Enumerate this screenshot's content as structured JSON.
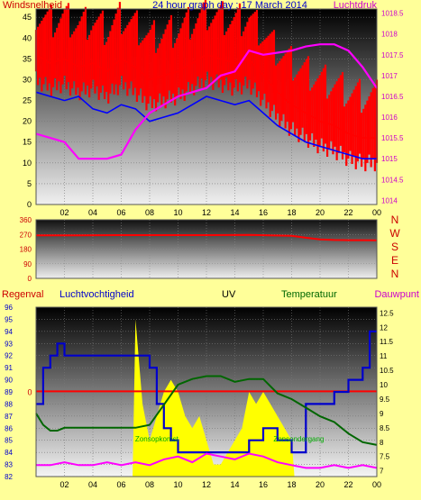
{
  "chart_data": [
    {
      "type": "line",
      "title": "24 hour graph day : 17 March 2014",
      "left_axis_title": "Windsnelheid",
      "right_axis_title": "Luchtdruk",
      "x_ticks": [
        "02",
        "04",
        "06",
        "08",
        "10",
        "12",
        "14",
        "16",
        "18",
        "20",
        "22",
        "00"
      ],
      "left_ticks": [
        0,
        5,
        10,
        15,
        20,
        25,
        30,
        35,
        40,
        45
      ],
      "right_ticks": [
        "1014",
        "1014.5",
        "1015",
        "1015.5",
        "1016",
        "1016.5",
        "1017",
        "1017.5",
        "1018",
        "1018.5"
      ],
      "left_ylim": [
        0,
        47
      ],
      "right_ylim": [
        1013.9,
        1018.6
      ],
      "series": [
        {
          "color": "#ff0000",
          "axis": "left",
          "x": [
            0,
            1,
            2,
            3,
            4,
            5,
            6,
            7,
            8,
            9,
            10,
            11,
            12,
            13,
            14,
            15,
            16,
            17,
            18,
            19,
            20,
            21,
            22,
            23,
            24
          ],
          "y": [
            36,
            34,
            35,
            33,
            34,
            32,
            35,
            33,
            30,
            31,
            32,
            34,
            36,
            35,
            34,
            35,
            31,
            27,
            24,
            22,
            20,
            19,
            17,
            16,
            16
          ]
        },
        {
          "color": "#0000ff",
          "axis": "left",
          "x": [
            0,
            1,
            2,
            3,
            4,
            5,
            6,
            7,
            8,
            9,
            10,
            11,
            12,
            13,
            14,
            15,
            16,
            17,
            18,
            19,
            20,
            21,
            22,
            23,
            24
          ],
          "y": [
            27,
            26,
            25,
            26,
            23,
            22,
            24,
            23,
            20,
            21,
            22,
            24,
            26,
            25,
            24,
            25,
            22,
            19,
            17,
            15,
            14,
            13,
            12,
            11,
            11
          ]
        },
        {
          "color": "#ff00ff",
          "axis": "right",
          "x": [
            0,
            1,
            2,
            3,
            4,
            5,
            6,
            7,
            8,
            9,
            10,
            11,
            12,
            13,
            14,
            15,
            16,
            17,
            18,
            19,
            20,
            21,
            22,
            23,
            24
          ],
          "y": [
            1015.6,
            1015.5,
            1015.4,
            1015.0,
            1015.0,
            1015.0,
            1015.1,
            1015.7,
            1016.1,
            1016.3,
            1016.5,
            1016.6,
            1016.7,
            1017.0,
            1017.1,
            1017.6,
            1017.5,
            1017.55,
            1017.6,
            1017.7,
            1017.75,
            1017.75,
            1017.6,
            1017.2,
            1016.7
          ]
        }
      ]
    },
    {
      "type": "line",
      "left_ticks": [
        0,
        90,
        180,
        270,
        360
      ],
      "right_labels": [
        "N",
        "W",
        "S",
        "E",
        "N"
      ],
      "ylim": [
        0,
        360
      ],
      "series": [
        {
          "color": "#ff0000",
          "x": [
            0,
            3,
            6,
            9,
            12,
            15,
            18,
            19,
            20,
            21,
            22,
            23,
            24
          ],
          "y": [
            265,
            265,
            266,
            266,
            266,
            267,
            262,
            250,
            240,
            236,
            235,
            235,
            234
          ]
        }
      ]
    },
    {
      "type": "line",
      "labels": {
        "regenval": "Regenval",
        "luchtvochtigheid": "Luchtvochtigheid",
        "uv": "UV",
        "temperatuur": "Temperatuur",
        "dauwpunt": "Dauwpunt",
        "zonsopkomst": "Zonsopkomst",
        "zonsondergang": "Zonsondergang"
      },
      "left_ticks": [
        82,
        83,
        84,
        85,
        86,
        87,
        88,
        89,
        90,
        91,
        92,
        93,
        94,
        95,
        96
      ],
      "right_ticks": [
        "7",
        "7.5",
        "8",
        "8.5",
        "9",
        "9.5",
        "10",
        "10.5",
        "11",
        "11.5",
        "12",
        "12.5"
      ],
      "rain_label": "0",
      "left_ylim": [
        82,
        96
      ],
      "right_ylim": [
        6.8,
        12.7
      ],
      "series": [
        {
          "color": "#0000cc",
          "axis": "left",
          "x": [
            0,
            0.5,
            1,
            1.5,
            2,
            3,
            4,
            5,
            6,
            7,
            8,
            8.5,
            9,
            9.5,
            10,
            11,
            12,
            13,
            14,
            15,
            16,
            17,
            18,
            19,
            20,
            21,
            22,
            23,
            23.5,
            24
          ],
          "y": [
            88,
            91,
            92,
            93,
            92,
            92,
            92,
            92,
            92,
            92,
            91,
            88,
            86,
            85,
            84,
            84,
            84,
            84,
            84,
            85,
            86,
            85,
            84,
            88,
            88,
            89,
            90,
            91,
            94,
            94
          ]
        },
        {
          "color": "#006600",
          "axis": "right",
          "x": [
            0,
            0.5,
            1,
            1.5,
            2,
            3,
            4,
            5,
            6,
            7,
            8,
            9,
            10,
            11,
            12,
            13,
            14,
            15,
            16,
            17,
            18,
            19,
            20,
            21,
            22,
            23,
            24
          ],
          "y": [
            9,
            8.6,
            8.4,
            8.4,
            8.5,
            8.5,
            8.5,
            8.5,
            8.5,
            8.5,
            8.6,
            9.3,
            10,
            10.2,
            10.3,
            10.3,
            10.1,
            10.2,
            10.2,
            9.7,
            9.5,
            9.2,
            8.9,
            8.7,
            8.3,
            8.0,
            7.9
          ]
        },
        {
          "color": "#ff00ff",
          "axis": "right",
          "x": [
            0,
            1,
            2,
            3,
            4,
            5,
            6,
            7,
            8,
            9,
            10,
            11,
            12,
            13,
            14,
            15,
            16,
            17,
            18,
            19,
            20,
            21,
            22,
            23,
            24
          ],
          "y": [
            7.2,
            7.2,
            7.3,
            7.2,
            7.2,
            7.3,
            7.2,
            7.3,
            7.2,
            7.4,
            7.5,
            7.3,
            7.6,
            7.5,
            7.4,
            7.6,
            7.5,
            7.3,
            7.2,
            7.1,
            7.1,
            7.2,
            7.1,
            7.2,
            7.1
          ]
        },
        {
          "color": "#ffff00",
          "type": "uv-area",
          "x": [
            6.8,
            7,
            7.5,
            8,
            8.5,
            9,
            9.5,
            10,
            10.5,
            11,
            11.5,
            12,
            12.5,
            13,
            13.5,
            14,
            14.5,
            15,
            15.5,
            16,
            16.5,
            17,
            17.5,
            18,
            18.2
          ],
          "y": [
            82,
            95,
            88,
            85,
            87,
            89,
            90,
            89,
            87,
            86,
            87,
            85,
            83,
            83,
            84,
            85,
            86,
            89,
            88,
            89,
            88,
            87,
            86,
            85,
            82
          ]
        }
      ]
    }
  ]
}
